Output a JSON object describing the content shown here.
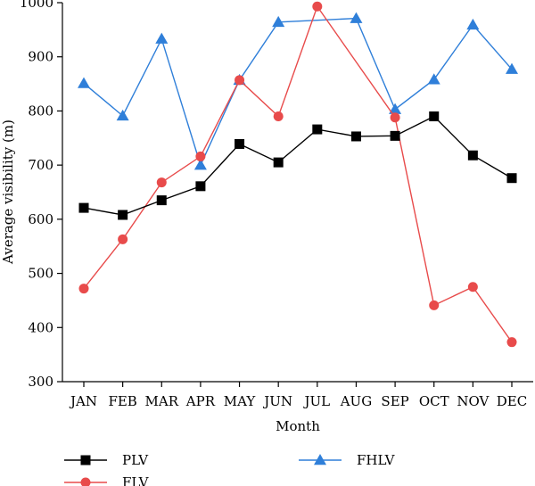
{
  "chart_data": {
    "type": "line",
    "xlabel": "Month",
    "ylabel": "Average visibility (m)",
    "categories": [
      "JAN",
      "FEB",
      "MAR",
      "APR",
      "MAY",
      "JUN",
      "JUL",
      "AUG",
      "SEP",
      "OCT",
      "NOV",
      "DEC"
    ],
    "ylim": [
      300,
      1000
    ],
    "yticks": [
      300,
      400,
      500,
      600,
      700,
      800,
      900,
      1000
    ],
    "grid": false,
    "legend_position": "bottom",
    "series": [
      {
        "name": "PLV",
        "color": "#000000",
        "marker": "square",
        "values": [
          621,
          608,
          635,
          661,
          739,
          705,
          766,
          753,
          754,
          790,
          718,
          676
        ]
      },
      {
        "name": "FLV",
        "color": "#e84b4b",
        "marker": "circle",
        "values": [
          472,
          563,
          668,
          716,
          857,
          790,
          993,
          null,
          788,
          441,
          475,
          373
        ]
      },
      {
        "name": "FHLV",
        "color": "#2f7fd9",
        "marker": "triangle",
        "values": [
          851,
          791,
          933,
          700,
          857,
          964,
          null,
          971,
          803,
          858,
          959,
          877
        ]
      }
    ]
  }
}
